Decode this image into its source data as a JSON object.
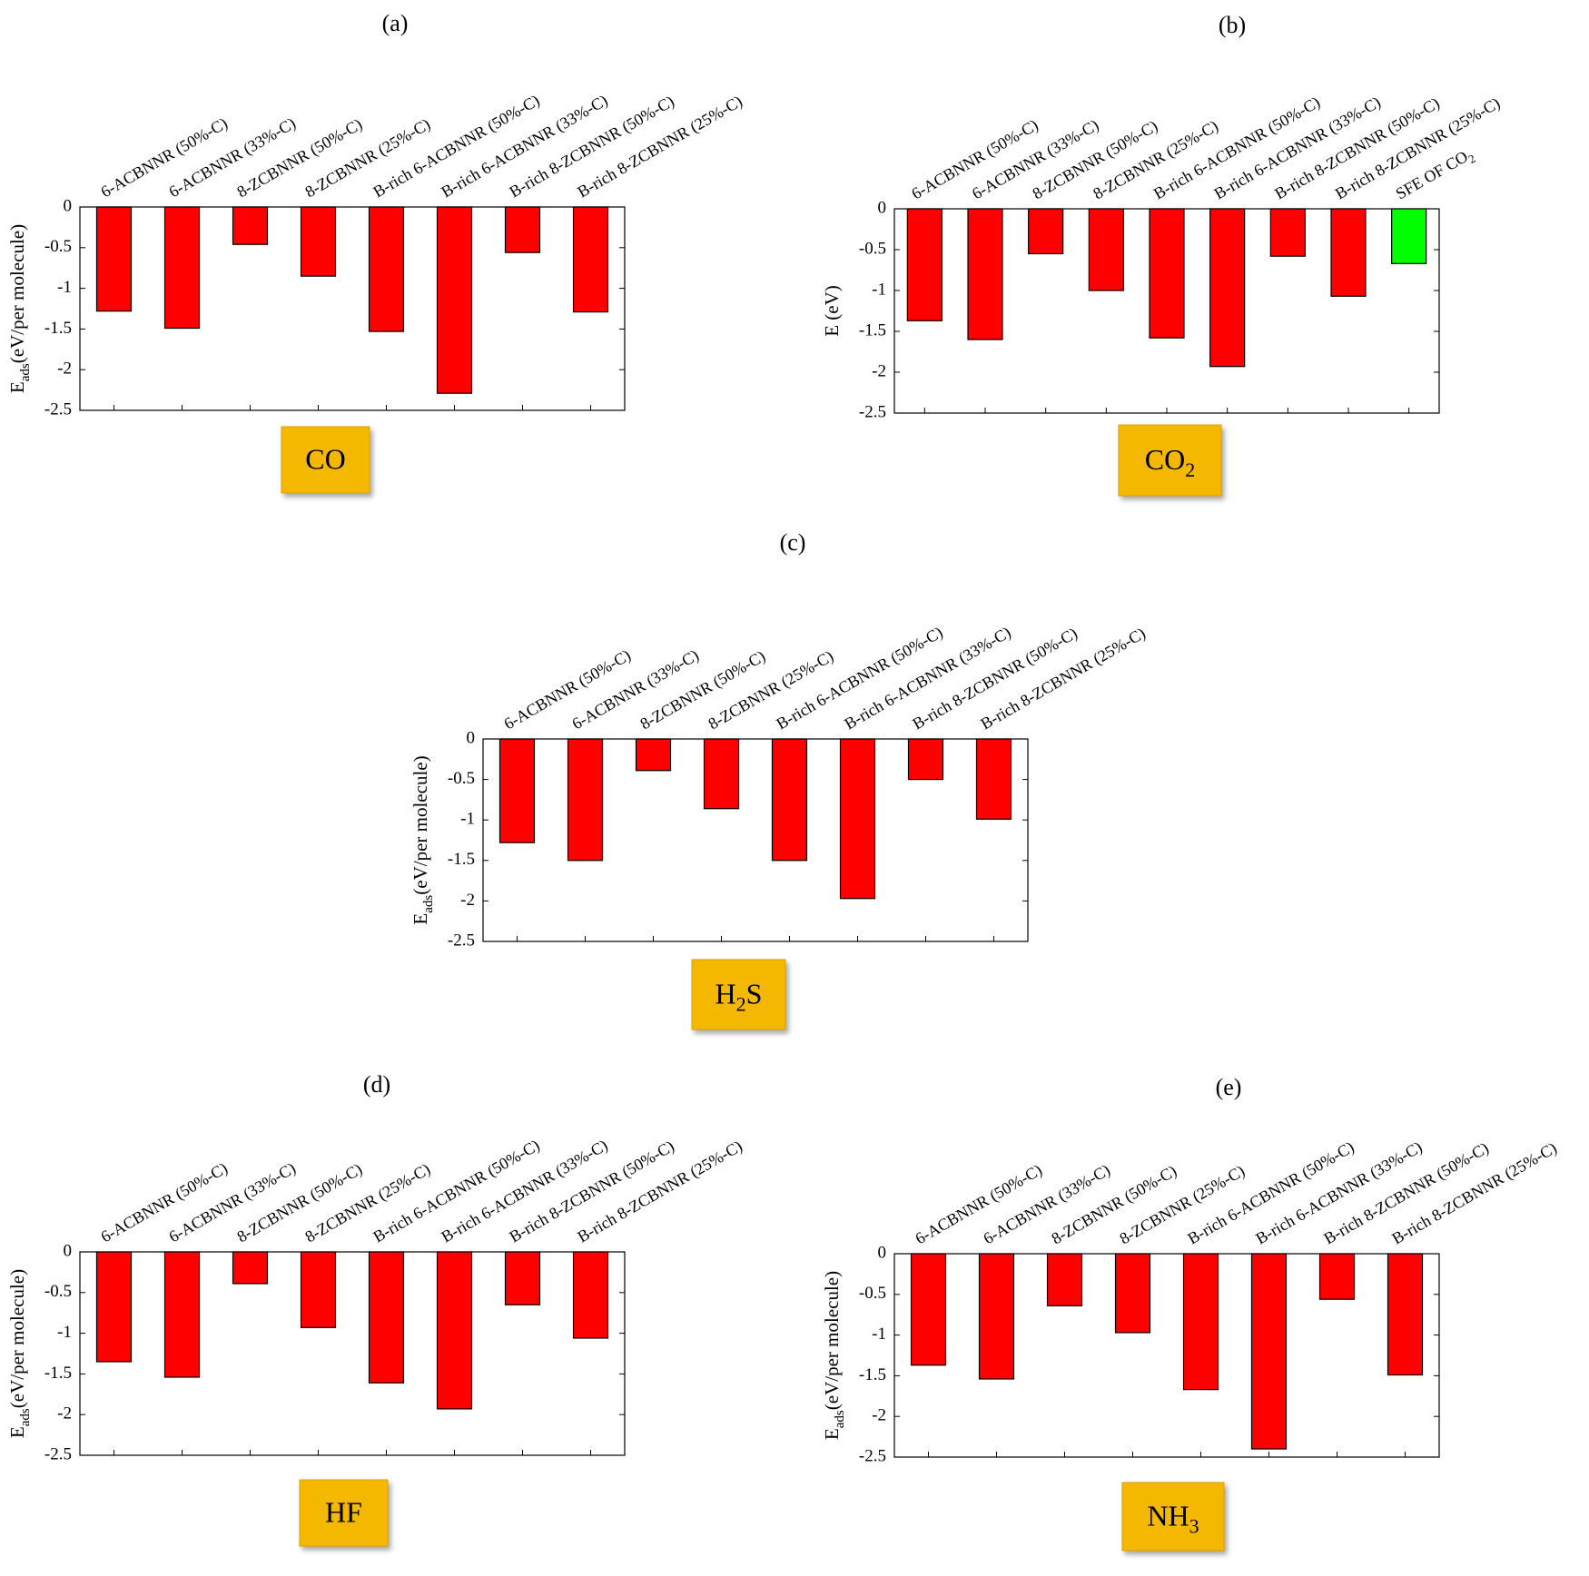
{
  "figure": {
    "bar_color": "#ff0000",
    "highlight_color": "#00ff00",
    "badge_color": "#f5b800",
    "badge_border": "#e0a000"
  },
  "chart_data": [
    {
      "panel": "(a)",
      "type": "bar",
      "ylabel_main": "E",
      "ylabel_sub": "ads",
      "ylabel_rest": "(eV/per molecule)",
      "ylim": [
        -2.5,
        0
      ],
      "yticks": [
        "0",
        "-0.5",
        "-1",
        "-1.5",
        "-2",
        "-2.5"
      ],
      "categories": [
        "6-ACBNNR (50%-C)",
        "6-ACBNNR (33%-C)",
        "8-ZCBNNR (50%-C)",
        "8-ZCBNNR (25%-C)",
        "B-rich 6-ACBNNR (50%-C)",
        "B-rich 6-ACBNNR (33%-C)",
        "B-rich 8-ZCBNNR (50%-C)",
        "B-rich 8-ZCBNNR (25%-C)"
      ],
      "values": [
        -1.28,
        -1.49,
        -0.46,
        -0.85,
        -1.53,
        -2.29,
        -0.56,
        -1.29
      ],
      "molecule_main": "CO",
      "molecule_sub": "",
      "molecule_rest": ""
    },
    {
      "panel": "(b)",
      "type": "bar",
      "ylabel_main": "E (eV)",
      "ylabel_sub": "",
      "ylabel_rest": "",
      "ylim": [
        -2.5,
        0
      ],
      "yticks": [
        "0",
        "-0.5",
        "-1",
        "-1.5",
        "-2",
        "-2.5"
      ],
      "categories": [
        "6-ACBNNR (50%-C)",
        "6-ACBNNR (33%-C)",
        "8-ZCBNNR (50%-C)",
        "8-ZCBNNR (25%-C)",
        "B-rich 6-ACBNNR (50%-C)",
        "B-rich 6-ACBNNR (33%-C)",
        "B-rich 8-ZCBNNR (50%-C)",
        "B-rich 8-ZCBNNR (25%-C)",
        "SFE OF CO2"
      ],
      "values": [
        -1.37,
        -1.6,
        -0.55,
        -1.0,
        -1.58,
        -1.93,
        -0.58,
        -1.07,
        -0.67
      ],
      "highlight_index": 8,
      "molecule_main": "CO",
      "molecule_sub": "2",
      "molecule_rest": ""
    },
    {
      "panel": "(c)",
      "type": "bar",
      "ylabel_main": "E",
      "ylabel_sub": "ads",
      "ylabel_rest": "(eV/per molecule)",
      "ylim": [
        -2.5,
        0
      ],
      "yticks": [
        "0",
        "-0.5",
        "-1",
        "-1.5",
        "-2",
        "-2.5"
      ],
      "categories": [
        "6-ACBNNR (50%-C)",
        "6-ACBNNR (33%-C)",
        "8-ZCBNNR (50%-C)",
        "8-ZCBNNR (25%-C)",
        "B-rich 6-ACBNNR (50%-C)",
        "B-rich 6-ACBNNR (33%-C)",
        "B-rich 8-ZCBNNR (50%-C)",
        "B-rich 8-ZCBNNR (25%-C)"
      ],
      "values": [
        -1.28,
        -1.5,
        -0.39,
        -0.86,
        -1.5,
        -1.97,
        -0.5,
        -0.99
      ],
      "molecule_main": "H",
      "molecule_sub": "2",
      "molecule_rest": "S"
    },
    {
      "panel": "(d)",
      "type": "bar",
      "ylabel_main": "E",
      "ylabel_sub": "ads",
      "ylabel_rest": "(eV/per molecule)",
      "ylim": [
        -2.5,
        0
      ],
      "yticks": [
        "0",
        "-0.5",
        "-1",
        "-1.5",
        "-2",
        "-2.5"
      ],
      "categories": [
        "6-ACBNNR (50%-C)",
        "6-ACBNNR (33%-C)",
        "8-ZCBNNR (50%-C)",
        "8-ZCBNNR (25%-C)",
        "B-rich 6-ACBNNR (50%-C)",
        "B-rich 6-ACBNNR (33%-C)",
        "B-rich 8-ZCBNNR (50%-C)",
        "B-rich 8-ZCBNNR (25%-C)"
      ],
      "values": [
        -1.35,
        -1.54,
        -0.39,
        -0.93,
        -1.61,
        -1.93,
        -0.65,
        -1.06
      ],
      "molecule_main": "HF",
      "molecule_sub": "",
      "molecule_rest": ""
    },
    {
      "panel": "(e)",
      "type": "bar",
      "ylabel_main": "E",
      "ylabel_sub": "ads",
      "ylabel_rest": "(eV/per molecule)",
      "ylim": [
        -2.5,
        0
      ],
      "yticks": [
        "0",
        "-0.5",
        "-1",
        "-1.5",
        "-2",
        "-2.5"
      ],
      "categories": [
        "6-ACBNNR (50%-C)",
        "6-ACBNNR (33%-C)",
        "8-ZCBNNR (50%-C)",
        "8-ZCBNNR (25%-C)",
        "B-rich 6-ACBNNR (50%-C)",
        "B-rich 6-ACBNNR (33%-C)",
        "B-rich 8-ZCBNNR (50%-C)",
        "B-rich 8-ZCBNNR (25%-C)"
      ],
      "values": [
        -1.37,
        -1.54,
        -0.64,
        -0.97,
        -1.67,
        -2.4,
        -0.56,
        -1.49
      ],
      "molecule_main": "NH",
      "molecule_sub": "3",
      "molecule_rest": ""
    }
  ]
}
